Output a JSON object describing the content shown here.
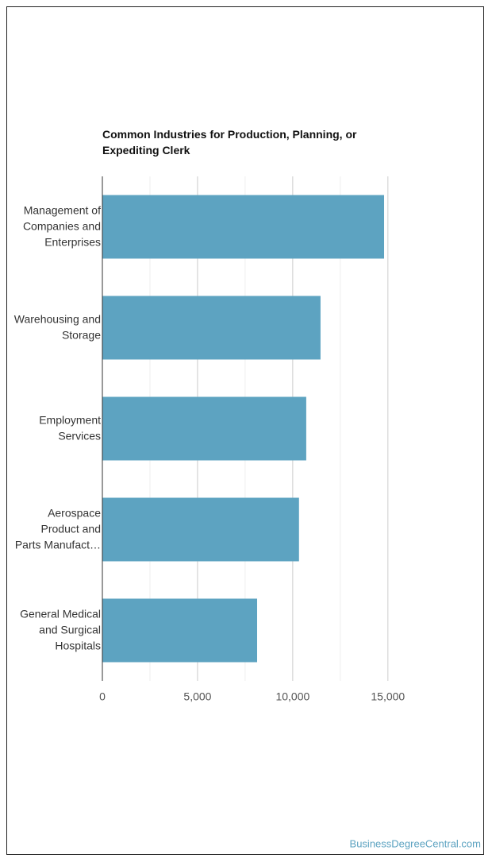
{
  "chart_data": {
    "type": "bar",
    "orientation": "horizontal",
    "title": "Common Industries for Production, Planning, or Expediting Clerk",
    "categories": [
      "Management of Companies and Enterprises",
      "Warehousing and Storage",
      "Employment Services",
      "Aerospace Product and Parts Manufact…",
      "General Medical and Surgical Hospitals"
    ],
    "values": [
      14800,
      11460,
      10710,
      10330,
      8130
    ],
    "color": "#5da3c1",
    "xlim": [
      0,
      15800
    ],
    "xticks": [
      0,
      {
        "value": 5000,
        "label": "5,000"
      },
      {
        "value": 10000,
        "label": "10,000"
      },
      {
        "value": 15000,
        "label": "15,000"
      }
    ],
    "xminor_ticks": [
      2500,
      7500,
      12500
    ],
    "grid": true
  },
  "footer": "BusinessDegreeCentral.com"
}
